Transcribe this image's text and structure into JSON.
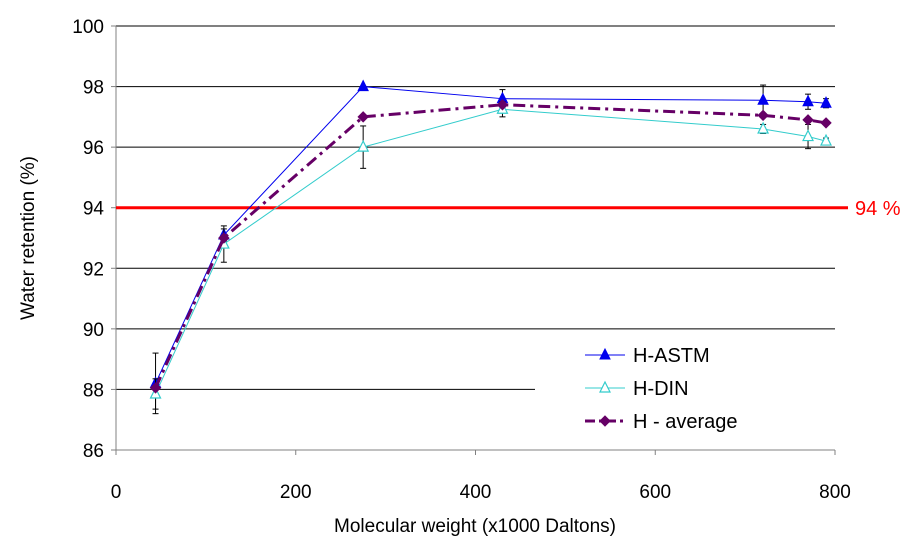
{
  "chart_data": {
    "type": "line",
    "title": "",
    "xlabel": "Molecular weight (x1000 Daltons)",
    "ylabel": "Water retention (%)",
    "xlim": [
      0,
      800
    ],
    "ylim": [
      86,
      100
    ],
    "x_ticks": [
      0,
      200,
      400,
      600,
      800
    ],
    "y_ticks": [
      86,
      88,
      90,
      92,
      94,
      96,
      98,
      100
    ],
    "grid": "horizontal",
    "legend_position": "bottom-right",
    "series": [
      {
        "name": "H-ASTM",
        "color": "#0000ee",
        "marker": "filled-triangle",
        "line": "solid",
        "x": [
          44,
          120,
          275,
          430,
          720,
          770,
          790
        ],
        "y": [
          88.2,
          93.1,
          98.0,
          97.6,
          97.55,
          97.5,
          97.45
        ],
        "error": [
          1.0,
          0.2,
          0,
          0.3,
          0.5,
          0.25,
          0.15
        ]
      },
      {
        "name": "H-DIN",
        "color": "#33cccc",
        "marker": "open-triangle",
        "line": "solid",
        "x": [
          44,
          120,
          275,
          430,
          720,
          770,
          790
        ],
        "y": [
          87.85,
          92.8,
          96.0,
          97.25,
          96.6,
          96.35,
          96.2
        ],
        "error": [
          0.5,
          0.6,
          0.7,
          0.25,
          0.15,
          0.4,
          0.1
        ]
      },
      {
        "name": "H - average",
        "color": "#660066",
        "marker": "diamond",
        "line": "dash-dot",
        "x": [
          44,
          120,
          275,
          430,
          720,
          770,
          790
        ],
        "y": [
          88.05,
          93.0,
          97.0,
          97.4,
          97.05,
          96.9,
          96.8
        ],
        "error": [
          0,
          0,
          0,
          0,
          0,
          0,
          0
        ]
      }
    ],
    "reference_line": {
      "y": 94,
      "label": "94 %",
      "color": "#ff0000"
    }
  }
}
